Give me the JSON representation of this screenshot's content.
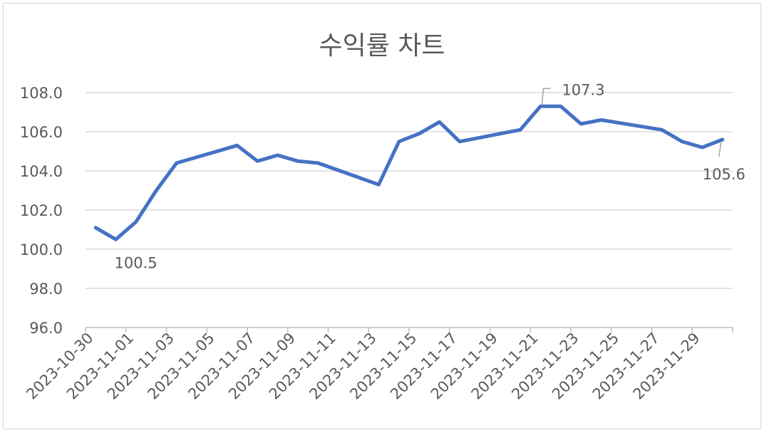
{
  "chart_data": {
    "type": "line",
    "title": "수익률 차트",
    "xlabel": "",
    "ylabel": "",
    "ylim": [
      96.0,
      108.0
    ],
    "yticks": [
      "96.0",
      "98.0",
      "100.0",
      "102.0",
      "104.0",
      "106.0",
      "108.0"
    ],
    "xlim": [
      "2023-10-30",
      "2023-12-01"
    ],
    "xtick_labels": [
      "2023-10-30",
      "2023-11-01",
      "2023-11-03",
      "2023-11-05",
      "2023-11-07",
      "2023-11-09",
      "2023-11-11",
      "2023-11-13",
      "2023-11-15",
      "2023-11-17",
      "2023-11-19",
      "2023-11-21",
      "2023-11-23",
      "2023-11-25",
      "2023-11-27",
      "2023-11-29"
    ],
    "grid": true,
    "series": [
      {
        "x": [
          "2023-10-30",
          "2023-10-31",
          "2023-11-01",
          "2023-11-02",
          "2023-11-03",
          "2023-11-06",
          "2023-11-07",
          "2023-11-08",
          "2023-11-09",
          "2023-11-10",
          "2023-11-13",
          "2023-11-14",
          "2023-11-15",
          "2023-11-16",
          "2023-11-17",
          "2023-11-20",
          "2023-11-21",
          "2023-11-22",
          "2023-11-23",
          "2023-11-24",
          "2023-11-27",
          "2023-11-28",
          "2023-11-29",
          "2023-11-30"
        ],
        "values": [
          101.1,
          100.5,
          101.4,
          103.0,
          104.4,
          105.3,
          104.5,
          104.8,
          104.5,
          104.4,
          103.3,
          105.5,
          105.9,
          106.5,
          105.5,
          106.1,
          107.3,
          107.3,
          106.4,
          106.6,
          106.1,
          105.5,
          105.2,
          105.6
        ],
        "color": "#4472C4"
      }
    ],
    "annotations": [
      {
        "label": "100.5",
        "x": "2023-10-31",
        "y": 100.5
      },
      {
        "label": "107.3",
        "x": "2023-11-21",
        "y": 107.3
      },
      {
        "label": "105.6",
        "x": "2023-11-30",
        "y": 105.6
      }
    ]
  }
}
